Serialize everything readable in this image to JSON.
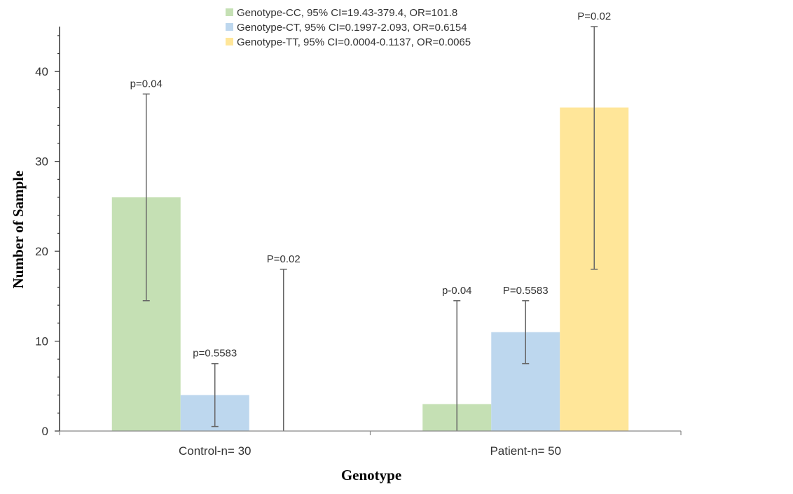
{
  "chart_data": {
    "type": "bar",
    "xlabel": "Genotype",
    "ylabel": "Number of Sample",
    "ylim": [
      0,
      45
    ],
    "yticks": [
      0,
      10,
      20,
      30,
      40
    ],
    "grid": false,
    "legend_position": "top",
    "categories": [
      "Control-n= 30",
      "Patient-n= 50"
    ],
    "series": [
      {
        "name": "Genotype-CC, 95% CI=19.43-379.4, OR=101.8",
        "color": "#c5e0b4",
        "values": [
          26,
          3
        ],
        "error_low": [
          14.5,
          0
        ],
        "error_high": [
          37.5,
          14.5
        ],
        "annotations": [
          "p=0.04",
          "p-0.04"
        ]
      },
      {
        "name": "Genotype-CT, 95% CI=0.1997-2.093, OR=0.6154",
        "color": "#bdd7ee",
        "values": [
          4,
          11
        ],
        "error_low": [
          0.5,
          7.5
        ],
        "error_high": [
          7.5,
          14.5
        ],
        "annotations": [
          "p=0.5583",
          "P=0.5583"
        ]
      },
      {
        "name": "Genotype-TT, 95% CI=0.0004-0.1137, OR=0.0065",
        "color": "#ffe699",
        "values": [
          0,
          36
        ],
        "error_low": [
          0,
          18
        ],
        "error_high": [
          18,
          45
        ],
        "annotations": [
          "P=0.02",
          "P=0.02"
        ]
      }
    ]
  }
}
